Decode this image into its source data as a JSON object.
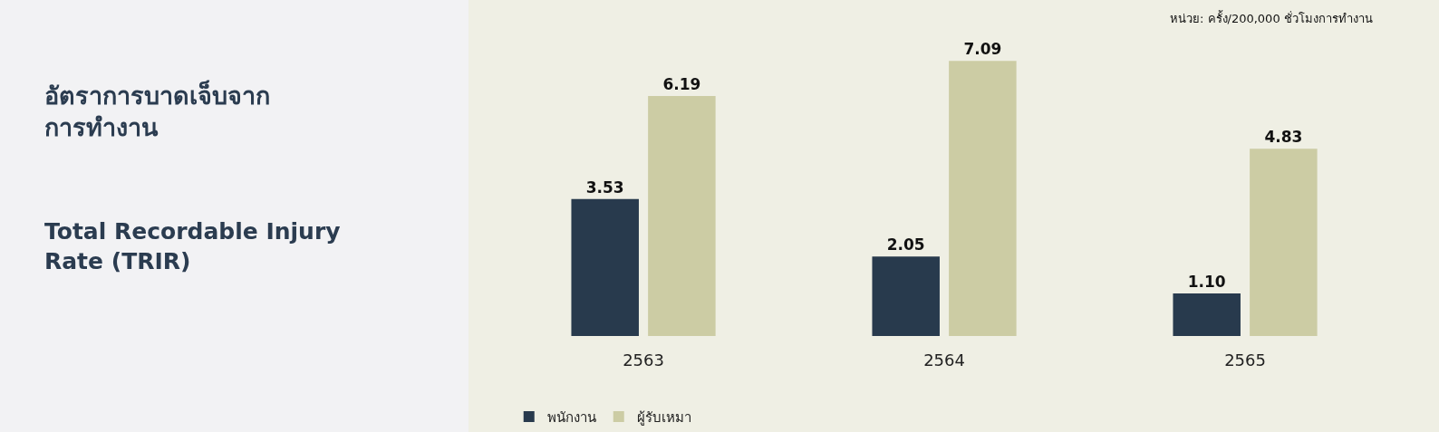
{
  "chart_data": {
    "type": "bar",
    "title": "อัตราการบาดเจ็บจาก\nการทำงาน",
    "subtitle": "Total Recordable Injury\nRate (TRIR)",
    "annotations": [
      "หน่วย: ครั้ง/200,000 ชั่วโมงการทำงาน"
    ],
    "categories": [
      "2563",
      "2564",
      "2565"
    ],
    "series": [
      {
        "name": "พนักงาน",
        "color": "#283a4d",
        "values": [
          3.53,
          2.05,
          1.1
        ],
        "value_labels": [
          "3.53",
          "2.05",
          "1.10"
        ]
      },
      {
        "name": "ผู้รับเหมา",
        "color": "#cccca4",
        "values": [
          6.19,
          7.09,
          4.83
        ],
        "value_labels": [
          "6.19",
          "7.09",
          "4.83"
        ]
      }
    ],
    "legend": "bottom left"
  }
}
